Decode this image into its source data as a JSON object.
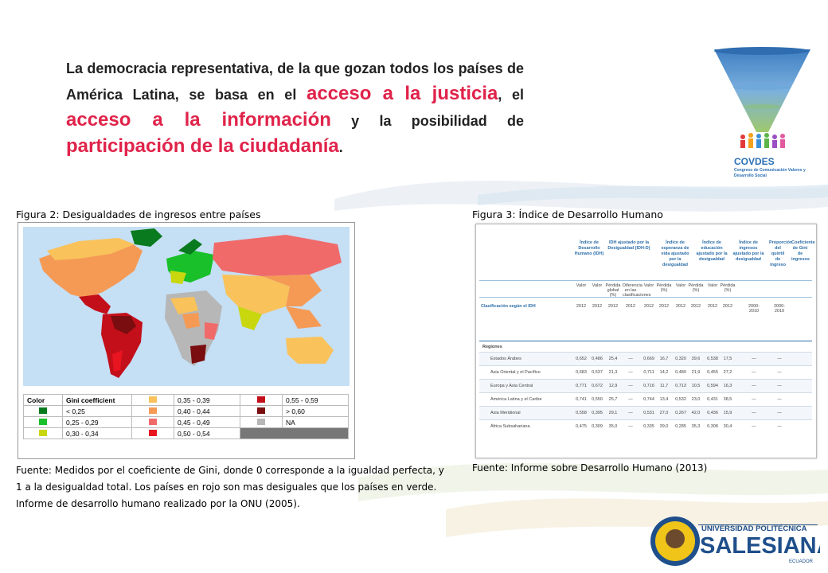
{
  "intro": {
    "part1": "La democracia representativa, de la que gozan todos los países de América Latina, se basa en el ",
    "hl1": "acceso a la justicia",
    "part2": ", el ",
    "hl2": "acceso a la información",
    "part3": " y la posibilidad de ",
    "hl3": "participación de la ciudadanía",
    "part4": "."
  },
  "covdes": {
    "name": "COVDES",
    "subtitle": "Congreso de Comunicación Valores y Desarrollo Social"
  },
  "figure2": {
    "title": "Figura 2: Desigualdades de ingresos entre países",
    "legend_header_color": "Color",
    "legend_header_gini": "Gini coefficient",
    "legend": [
      {
        "range": "< 0,25",
        "color": "#0a7a1e"
      },
      {
        "range": "0,25 - 0,29",
        "color": "#19c02a"
      },
      {
        "range": "0,30 - 0,34",
        "color": "#c8d70e"
      },
      {
        "range": "0,35 - 0,39",
        "color": "#f9c25b"
      },
      {
        "range": "0,40 - 0,44",
        "color": "#f59a55"
      },
      {
        "range": "0,45 - 0,49",
        "color": "#f06a6a"
      },
      {
        "range": "0,50 - 0,54",
        "color": "#e8141f"
      },
      {
        "range": "0,55 - 0,59",
        "color": "#c30f1a"
      },
      {
        "range": "> 0,60",
        "color": "#7a0d10"
      },
      {
        "range": "NA",
        "color": "#b7b7b7"
      }
    ],
    "source": "Fuente: Medidos por el coeficiente de Gini, donde 0 corresponde a la igualdad perfecta, y 1 a la desigualdad total. Los países en rojo son mas desiguales que los países en verde. Informe de desarrollo humano realizado por la ONU (2005)."
  },
  "figure3": {
    "title": "Figura 3: Índice de Desarrollo Humano",
    "headers": [
      "Índice de Desarrollo Humano (IDH)",
      "IDH ajustado por la Desigualdad (IDH-D)",
      "Índice de esperanza de vida ajustado por la desigualdad",
      "Índice de educación ajustado por la desigualdad",
      "Índice de ingresos ajustado por la desigualdad",
      "Proporción del quintil de ingreso",
      "Coeficiente de Gini de ingresos"
    ],
    "subheaders": [
      "Valor",
      "Valor",
      "Pérdida global (%)",
      "Diferencia en las clasificaciones",
      "Valor",
      "Pérdida (%)",
      "Valor",
      "Pérdida (%)",
      "Valor",
      "Pérdida (%)",
      "",
      ""
    ],
    "years": [
      "2012",
      "2012",
      "2012",
      "2012",
      "2012",
      "2012",
      "2012",
      "2012",
      "2012",
      "2012",
      "2000-2010",
      "2000-2010"
    ],
    "row_label": "Clasificación según el IDH",
    "section": "Regiones",
    "rows": [
      {
        "name": "Estados Árabes",
        "v": [
          "0,652",
          "0,486",
          "25,4",
          "—",
          "0,669",
          "16,7",
          "0,320",
          "39,6",
          "0,538",
          "17,5",
          "—",
          "—"
        ]
      },
      {
        "name": "Asia Oriental y el Pacífico",
        "v": [
          "0,683",
          "0,537",
          "21,3",
          "—",
          "0,711",
          "14,2",
          "0,480",
          "21,9",
          "0,455",
          "27,2",
          "—",
          "—"
        ]
      },
      {
        "name": "Europa y Asia Central",
        "v": [
          "0,771",
          "0,672",
          "12,9",
          "—",
          "0,716",
          "11,7",
          "0,713",
          "10,5",
          "0,594",
          "16,3",
          "—",
          "—"
        ]
      },
      {
        "name": "América Latina y el Caribe",
        "v": [
          "0,741",
          "0,550",
          "25,7",
          "—",
          "0,744",
          "13,4",
          "0,532",
          "23,0",
          "0,431",
          "38,5",
          "—",
          "—"
        ]
      },
      {
        "name": "Asia Meridional",
        "v": [
          "0,558",
          "0,395",
          "29,1",
          "—",
          "0,531",
          "27,0",
          "0,267",
          "42,0",
          "0,436",
          "15,9",
          "—",
          "—"
        ]
      },
      {
        "name": "África Subsahariana",
        "v": [
          "0,475",
          "0,309",
          "35,0",
          "—",
          "0,335",
          "39,0",
          "0,285",
          "35,3",
          "0,308",
          "30,4",
          "—",
          "—"
        ]
      }
    ],
    "source": "Fuente: Informe sobre Desarrollo Humano (2013)"
  },
  "ups": {
    "line1": "UNIVERSIDAD POLITÉCNICA",
    "line2": "SALESIANA",
    "line3": "ECUADOR"
  }
}
